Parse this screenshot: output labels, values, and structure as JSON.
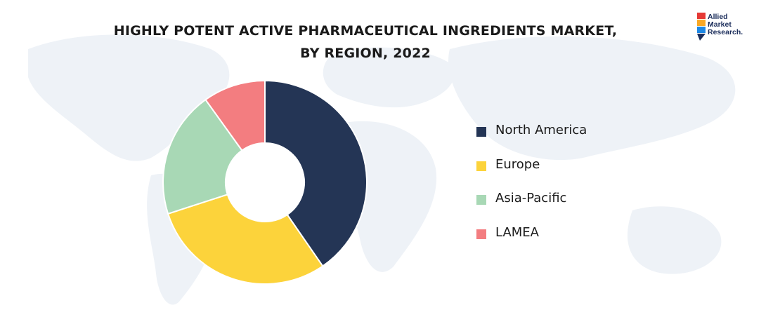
{
  "title_lines": [
    "HIGHLY POTENT ACTIVE PHARMACEUTICAL INGREDIENTS MARKET,",
    "BY REGION, 2022"
  ],
  "logo": {
    "lines": [
      "Allied",
      "Market",
      "Research."
    ],
    "colors": [
      "#e53935",
      "#f9a825",
      "#1e88e5",
      "#1b2d5b"
    ]
  },
  "chart_data": {
    "type": "pie",
    "title": "HIGHLY POTENT ACTIVE PHARMACEUTICAL INGREDIENTS MARKET, BY REGION, 2022",
    "donut": true,
    "legend_position": "right",
    "categories": [
      "North America",
      "Europe",
      "Asia-Pacific",
      "LAMEA"
    ],
    "values": [
      40.4,
      29.6,
      20.1,
      9.9
    ],
    "colors": [
      "#243555",
      "#fcd33b",
      "#a8d8b5",
      "#f37d80"
    ]
  }
}
